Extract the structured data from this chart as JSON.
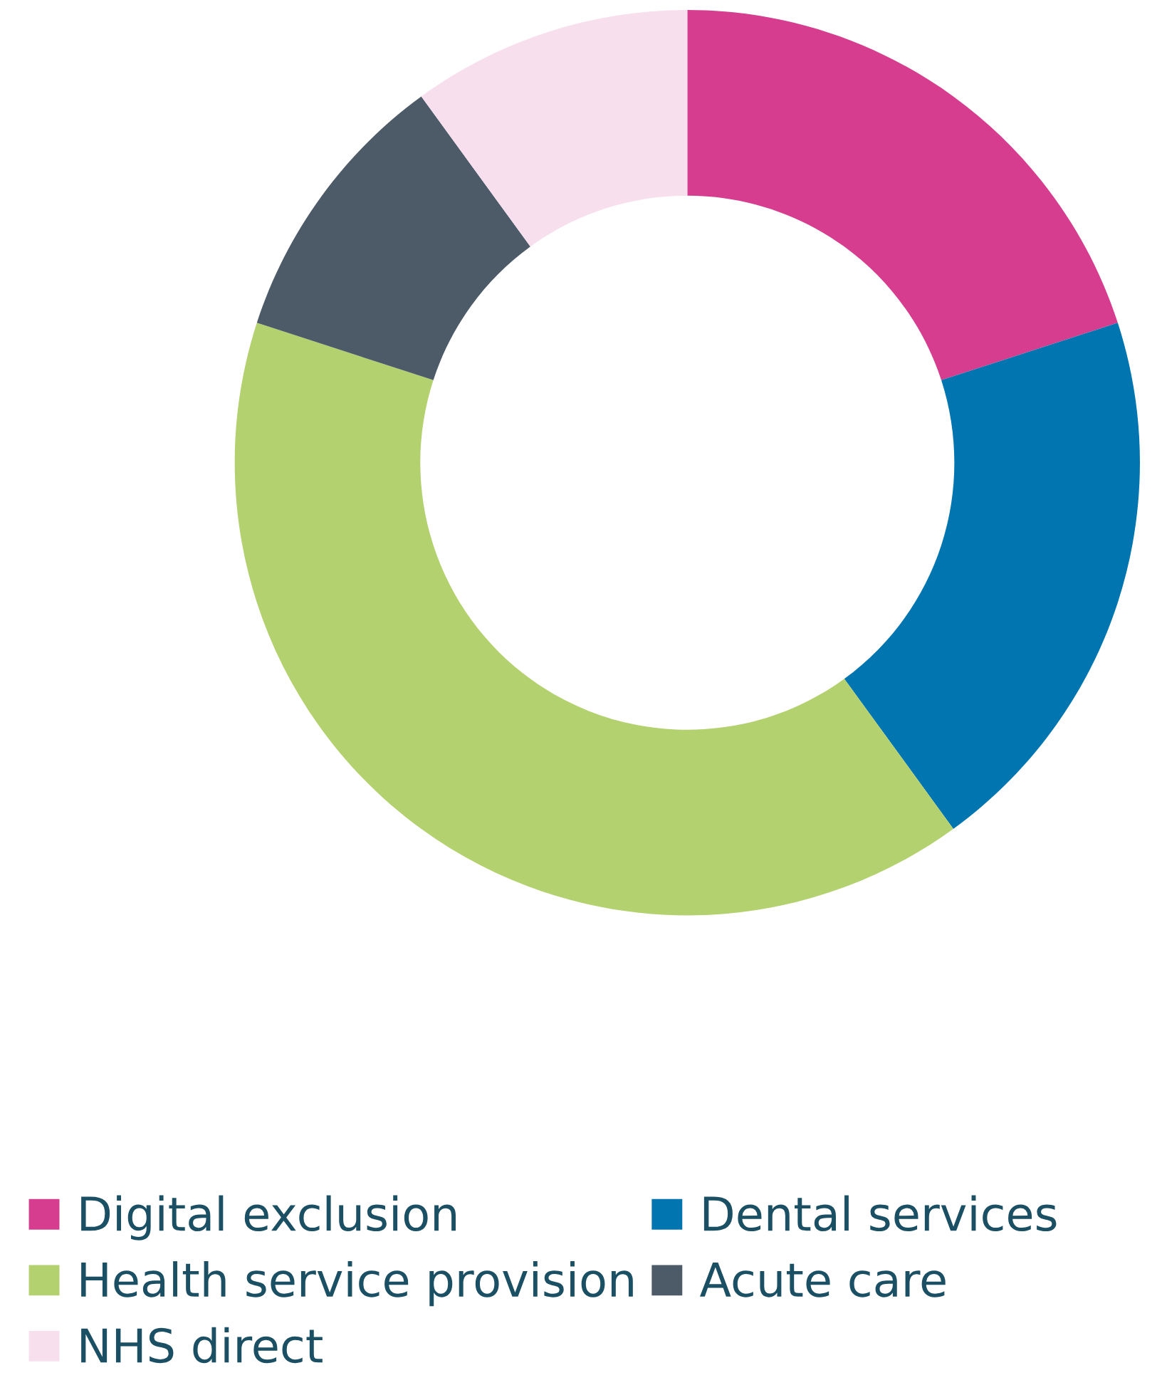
{
  "chart_data": {
    "type": "donut",
    "categories": [
      "Digital exclusion",
      "Dental services",
      "Health service provision",
      "Acute care",
      "NHS direct"
    ],
    "values": [
      20,
      20,
      40,
      10,
      10
    ],
    "colors": [
      "#d63d8f",
      "#0075b0",
      "#b3d16e",
      "#4d5a68",
      "#f7dfee"
    ],
    "legend": "bottom"
  }
}
